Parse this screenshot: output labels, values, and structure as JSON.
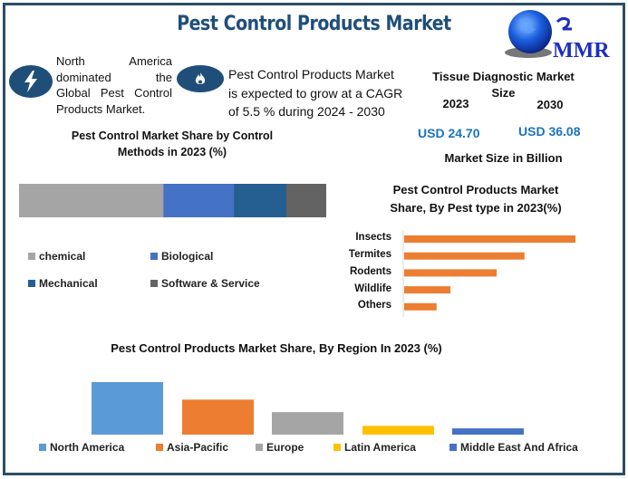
{
  "header": {
    "title": "Pest Control Products Market",
    "logo_text": "MMR"
  },
  "highlights": [
    {
      "icon": "lightning-bolt-icon",
      "text_lines": [
        "North America",
        "dominated the",
        "Global Pest Control",
        "Products Market."
      ]
    },
    {
      "icon": "flame-icon",
      "text_lines": [
        "Pest Control Products Market",
        "is expected to grow at a CAGR",
        "of 5.5 % during 2024 - 2030"
      ]
    }
  ],
  "market_size": {
    "title_line1": "Tissue Diagnostic Market",
    "title_line2": "Size",
    "year_start": "2023",
    "year_end": "2030",
    "value_start": "USD 24.70",
    "value_end": "USD 36.08",
    "footer": "Market Size in Billion"
  },
  "colors": {
    "frame": "#2e4d66",
    "title": "#1f4e79",
    "usd": "#1a73c0",
    "pest_bar": "#ed7d31"
  },
  "chart_data": [
    {
      "type": "bar",
      "orientation": "horizontal-stacked",
      "title_line1": "Pest Control Market Share by Control",
      "title_line2": "Methods in 2023 (%)",
      "categories": [
        "chemical",
        "Biological",
        "Mechanical",
        "Software & Service"
      ],
      "values": [
        47,
        23,
        17,
        13
      ],
      "colors": [
        "#a5a5a5",
        "#4472c4",
        "#255e91",
        "#636363"
      ],
      "unit": "%",
      "legend": "bottom"
    },
    {
      "type": "bar",
      "orientation": "horizontal",
      "title_line1": "Pest Control Products Market",
      "title_line2": "Share, By Pest type in 2023(%)",
      "categories": [
        "Insects",
        "Termites",
        "Rodents",
        "Wildlife",
        "Others"
      ],
      "values": [
        37,
        26,
        20,
        10,
        7
      ],
      "color": "#ed7d31",
      "unit": "%",
      "grid": false
    },
    {
      "type": "bar",
      "orientation": "vertical",
      "title": "Pest Control Products Market Share, By Region In 2023 (%)",
      "categories": [
        "North America",
        "Asia-Pacific",
        "Europe",
        "Latin America",
        "Middle East And Africa"
      ],
      "values": [
        42,
        28,
        18,
        7,
        5
      ],
      "colors": [
        "#5b9bd5",
        "#ed7d31",
        "#a5a5a5",
        "#ffc000",
        "#4472c4"
      ],
      "unit": "%",
      "legend": "bottom",
      "grid": false
    }
  ]
}
